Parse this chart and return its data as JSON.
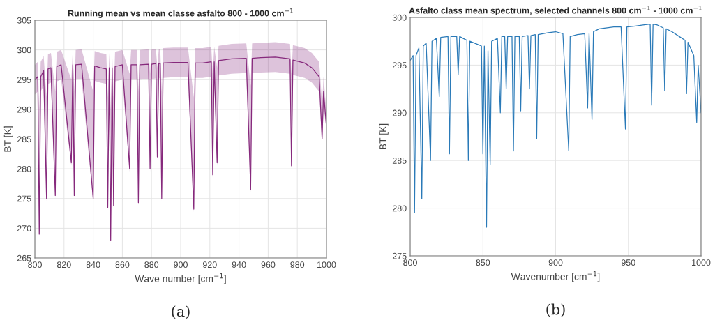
{
  "chart_data": [
    {
      "type": "line",
      "title": "Running mean vs mean classe asfalto 800 - 1000 cm$^{−1}$",
      "xlabel": "Wave number [cm$^{−1}$]",
      "ylabel": "BT [K]",
      "xlim": [
        800,
        1000
      ],
      "ylim": [
        265,
        305
      ],
      "xticks": [
        800,
        820,
        840,
        860,
        880,
        900,
        920,
        940,
        960,
        980,
        1000
      ],
      "yticks": [
        265,
        270,
        275,
        280,
        285,
        290,
        295,
        300,
        305
      ],
      "grid": true,
      "annotations": [
        "(a)"
      ],
      "series": [
        {
          "color": "#86297c",
          "x": [
            800,
            802,
            803,
            804,
            806,
            808,
            809,
            811,
            814,
            815,
            818,
            825,
            826,
            827,
            828,
            832,
            840,
            841,
            845,
            849,
            850,
            851,
            852,
            853,
            854,
            855,
            860,
            865,
            866,
            870,
            871,
            872,
            878,
            879,
            880,
            883,
            884,
            885,
            886,
            887,
            888,
            895,
            905,
            909,
            910,
            915,
            921,
            922,
            923,
            925,
            926,
            935,
            945,
            948,
            949,
            955,
            965,
            975,
            976,
            977,
            985,
            990,
            995,
            997,
            998,
            1000
          ],
          "values": [
            295,
            295.5,
            269,
            295.5,
            296.5,
            275,
            296.8,
            297,
            275.5,
            297.2,
            297.5,
            281,
            297.5,
            275.5,
            297.5,
            297.6,
            275,
            297.3,
            297,
            296.8,
            273.5,
            297,
            268,
            297,
            273.8,
            297.2,
            297.5,
            280,
            297.5,
            297.5,
            274.3,
            297.5,
            297.6,
            280,
            297.6,
            297.7,
            282,
            297.7,
            297.7,
            275,
            297.8,
            297.9,
            297.9,
            273.2,
            297.8,
            297.8,
            298,
            279,
            298,
            281,
            298.2,
            298.5,
            298.6,
            276.5,
            298.6,
            298.7,
            298.8,
            298.5,
            280.5,
            298.3,
            297.8,
            297,
            295.5,
            285,
            293,
            287
          ],
          "lower": [
            292.5,
            293,
            268.5,
            293,
            294,
            274.5,
            294.3,
            294.5,
            275,
            294.7,
            295,
            280.5,
            295,
            275,
            295,
            295.1,
            274.5,
            294.8,
            294.5,
            294.3,
            273,
            294.5,
            267.5,
            294.5,
            273.3,
            294.7,
            295,
            279.5,
            295,
            295,
            273.8,
            295,
            295.1,
            279.5,
            295.1,
            295.2,
            281.5,
            295.2,
            295.2,
            274.5,
            295.3,
            295.4,
            295.4,
            272.7,
            295.3,
            295.3,
            295.5,
            278.5,
            295.5,
            280.5,
            295.7,
            296,
            296.1,
            276,
            296.1,
            296.2,
            296.3,
            296,
            280,
            295.8,
            295.3,
            294.5,
            293,
            284.5,
            290.5,
            286.5
          ],
          "upper": [
            297.5,
            298,
            290,
            298,
            299,
            292,
            299.3,
            299.5,
            293,
            299.7,
            300,
            295,
            300,
            293,
            300,
            300.1,
            293,
            299.8,
            299.5,
            299.3,
            292,
            299.5,
            290,
            299.5,
            292,
            299.7,
            300,
            296,
            300,
            300,
            293,
            300,
            300.1,
            296,
            300.1,
            300.2,
            297,
            300.2,
            300.2,
            293,
            300.3,
            300.4,
            300.4,
            292,
            300.3,
            300.3,
            300.5,
            296,
            300.5,
            297,
            300.7,
            301,
            301.1,
            294,
            301.1,
            301.2,
            301.3,
            301,
            296,
            300.8,
            300.3,
            299.5,
            298,
            291,
            295.5,
            289.5
          ]
        }
      ]
    },
    {
      "type": "line",
      "title": "Asfalto class mean spectrum, selected channels 800 cm$^{−1}$ - 1000 cm$^{−1}$",
      "xlabel": "Wavenumber [cm$^{−1}$]",
      "ylabel": "BT [K]",
      "xlim": [
        800,
        1000
      ],
      "ylim": [
        275,
        300
      ],
      "xticks": [
        800,
        850,
        900,
        950,
        1000
      ],
      "yticks": [
        275,
        280,
        285,
        290,
        295,
        300
      ],
      "grid": true,
      "annotations": [
        "(b)"
      ],
      "series": [
        {
          "color": "#2a7ab8",
          "x": [
            800,
            802,
            803,
            804,
            806,
            808,
            809,
            811,
            814,
            815,
            818,
            820,
            821,
            826,
            827,
            828,
            832,
            833,
            834,
            839,
            840,
            841,
            846,
            849,
            850,
            851,
            852.5,
            853.5,
            855,
            856,
            860,
            862,
            863,
            865,
            866,
            867,
            870,
            871,
            872,
            875,
            876,
            877,
            881,
            882,
            883,
            886,
            887,
            888,
            895,
            900,
            905,
            909,
            910,
            915,
            920,
            922,
            923,
            925,
            926,
            930,
            940,
            945,
            948,
            949,
            955,
            960,
            965,
            966,
            967,
            970,
            974,
            975,
            976,
            980,
            985,
            989,
            990,
            991,
            995,
            997,
            998,
            1000
          ],
          "values": [
            295.5,
            296,
            279.5,
            296,
            296.8,
            281,
            297,
            297.3,
            285,
            297.5,
            297.8,
            291.7,
            297.9,
            298,
            285.7,
            298,
            298,
            294,
            298,
            297.6,
            285,
            297.5,
            297.2,
            297,
            285.7,
            297,
            278,
            296.5,
            284.6,
            297.5,
            297.8,
            290,
            298,
            298,
            292.5,
            298,
            298,
            286,
            298,
            298,
            290.2,
            298,
            298.1,
            292.5,
            298.1,
            298.2,
            287.3,
            298.2,
            298.4,
            298.5,
            298.3,
            286,
            298,
            298.2,
            298.3,
            290.5,
            298.3,
            289.3,
            298.5,
            298.8,
            299,
            299,
            288.3,
            299,
            299.1,
            299.2,
            299.3,
            290.8,
            299.3,
            299.2,
            298.9,
            292.3,
            298.8,
            298.5,
            298,
            297.6,
            292,
            297.4,
            296,
            289,
            295,
            290
          ]
        }
      ]
    }
  ]
}
